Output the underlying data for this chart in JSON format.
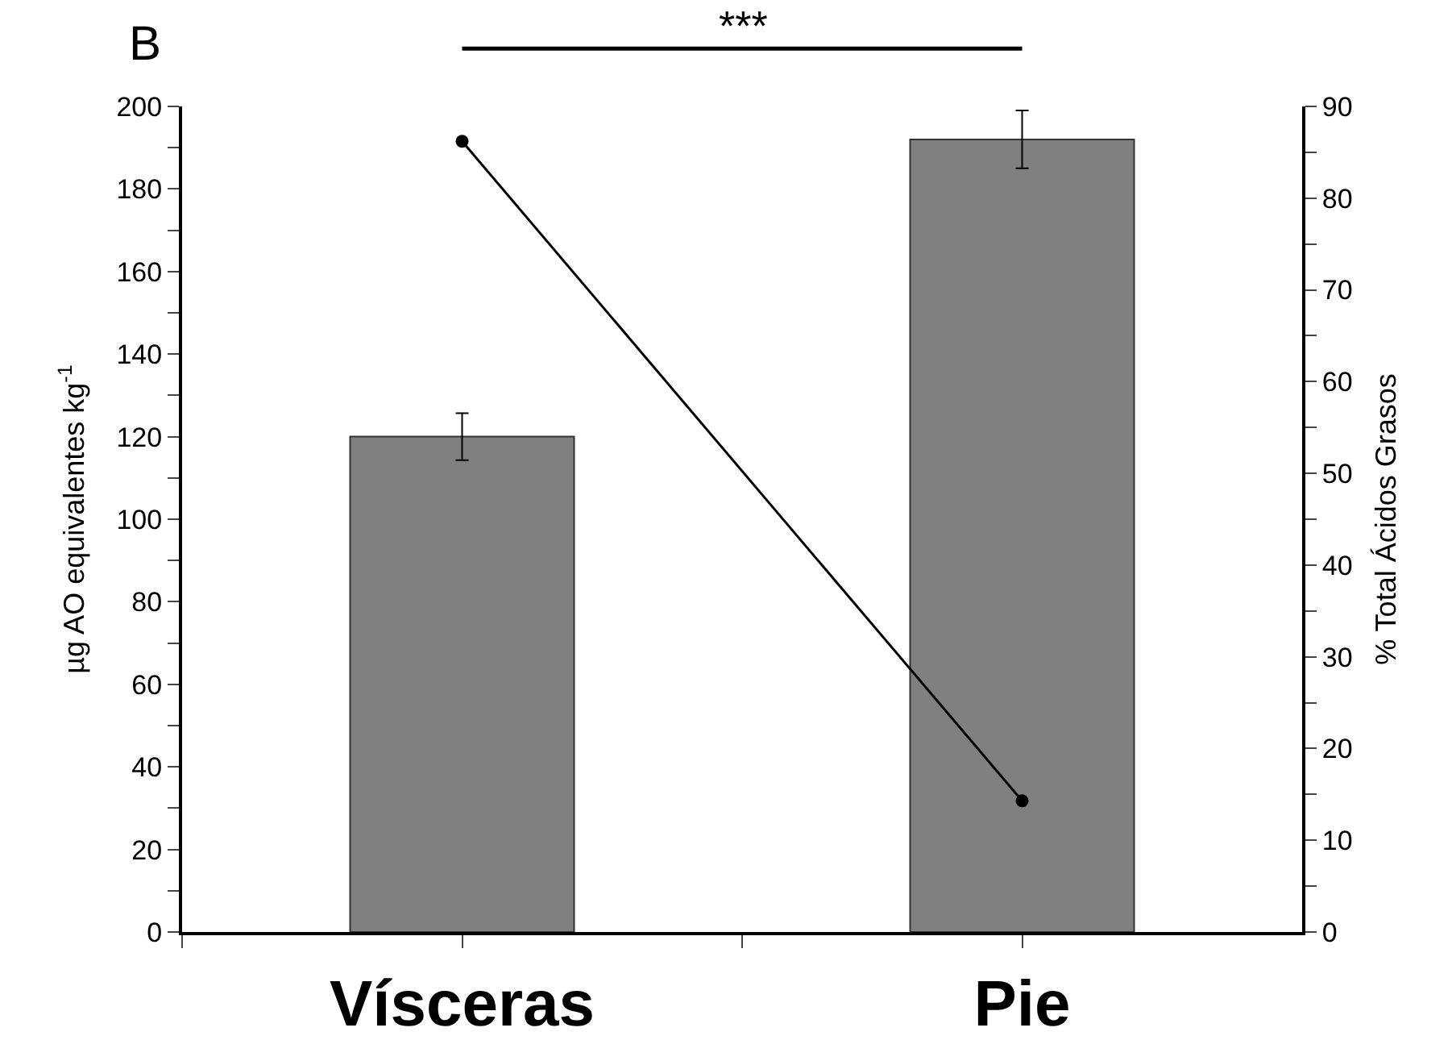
{
  "chart_data": {
    "type": "bar",
    "ylabel": "µg AO equivalentes kg$^{-1}$",
    "y2label": "% Total Ácidos Grasos",
    "categories": [
      "Vísceras",
      "Pie"
    ],
    "series": [
      {
        "color": "#808080",
        "values": [
          120,
          192
        ],
        "errors": [
          5.7,
          7
        ]
      },
      {
        "type": "line",
        "axis": "y2",
        "color": "#000000",
        "values": [
          86.2,
          14.3
        ],
        "marker": "circle",
        "line_style": "solid"
      }
    ],
    "ylim": [
      0,
      200
    ],
    "yticks": [
      0,
      {
        "value": 10,
        "label": null
      },
      20,
      {
        "value": 30,
        "label": null
      },
      40,
      {
        "value": 50,
        "label": null
      },
      60,
      {
        "value": 70,
        "label": null
      },
      80,
      {
        "value": 90,
        "label": null
      },
      100,
      {
        "value": 110,
        "label": null
      },
      120,
      {
        "value": 130,
        "label": null
      },
      140,
      {
        "value": 150,
        "label": null
      },
      160,
      {
        "value": 170,
        "label": null
      },
      180,
      {
        "value": 190,
        "label": null
      },
      200
    ],
    "y2lim": [
      0,
      90
    ],
    "y2ticks": [
      0,
      {
        "value": 5,
        "label": null
      },
      10,
      {
        "value": 15,
        "label": null
      },
      20,
      {
        "value": 25,
        "label": null
      },
      30,
      {
        "value": 35,
        "label": null
      },
      40,
      {
        "value": 45,
        "label": null
      },
      50,
      {
        "value": 55,
        "label": null
      },
      60,
      {
        "value": 65,
        "label": null
      },
      70,
      {
        "value": 75,
        "label": null
      },
      80,
      {
        "value": 85,
        "label": null
      },
      90
    ],
    "annotations": [
      "B",
      "***"
    ],
    "grid": false,
    "legend": false
  }
}
